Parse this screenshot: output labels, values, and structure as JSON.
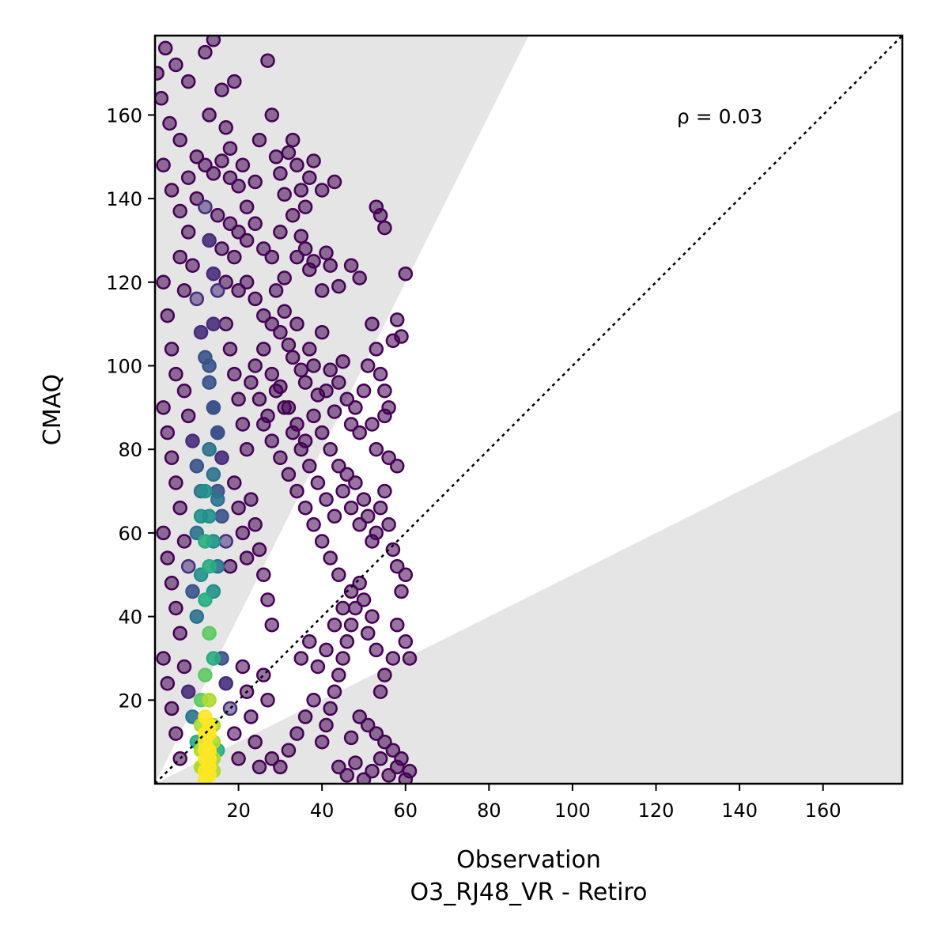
{
  "chart_data": {
    "type": "scatter",
    "xlabel": "Observation",
    "xlabel_sub": "O3_RJ48_VR - Retiro",
    "ylabel": "CMAQ",
    "annotation": "ρ = 0.03",
    "xlim": [
      0,
      179
    ],
    "ylim": [
      0,
      179
    ],
    "x_ticks": [
      20,
      40,
      60,
      80,
      100,
      120,
      140,
      160
    ],
    "y_ticks": [
      20,
      40,
      60,
      80,
      100,
      120,
      140,
      160
    ],
    "grid": false,
    "identity_line": true,
    "shaded_bands": [
      {
        "name": "upper",
        "slope": 2
      },
      {
        "name": "lower",
        "slope": 0.5
      }
    ],
    "colormap": [
      "#440154",
      "#472d7b",
      "#3b528b",
      "#2c728e",
      "#21918c",
      "#28ae80",
      "#5ec962",
      "#addc30",
      "#fde725"
    ],
    "points": [
      [
        0.5,
        170
      ],
      [
        1.5,
        164
      ],
      [
        2.5,
        176
      ],
      [
        3.5,
        158
      ],
      [
        5,
        172
      ],
      [
        6,
        154
      ],
      [
        8,
        168
      ],
      [
        10,
        150
      ],
      [
        12,
        175
      ],
      [
        13,
        160
      ],
      [
        14,
        178
      ],
      [
        16,
        166
      ],
      [
        17,
        157
      ],
      [
        18,
        152
      ],
      [
        19,
        168
      ],
      [
        2,
        148
      ],
      [
        4,
        142
      ],
      [
        6,
        137
      ],
      [
        8,
        145
      ],
      [
        10,
        140
      ],
      [
        12,
        148
      ],
      [
        14,
        146
      ],
      [
        16,
        149
      ],
      [
        18,
        145
      ],
      [
        20,
        143
      ],
      [
        21,
        148
      ],
      [
        22,
        138
      ],
      [
        24,
        144
      ],
      [
        25,
        154
      ],
      [
        27,
        173
      ],
      [
        28,
        160
      ],
      [
        29,
        150
      ],
      [
        30,
        146
      ],
      [
        31,
        141
      ],
      [
        32,
        151
      ],
      [
        33,
        154
      ],
      [
        34,
        148
      ],
      [
        35,
        142
      ],
      [
        36,
        138
      ],
      [
        37,
        145
      ],
      [
        38,
        149
      ],
      [
        40,
        142
      ],
      [
        43,
        144
      ],
      [
        20,
        132
      ],
      [
        22,
        130
      ],
      [
        24,
        134
      ],
      [
        26,
        128
      ],
      [
        28,
        126
      ],
      [
        30,
        132
      ],
      [
        31,
        121
      ],
      [
        33,
        136
      ],
      [
        34,
        126
      ],
      [
        35,
        131
      ],
      [
        36,
        128
      ],
      [
        37,
        123
      ],
      [
        38,
        125
      ],
      [
        40,
        118
      ],
      [
        41,
        127
      ],
      [
        42,
        124
      ],
      [
        44,
        119
      ],
      [
        47,
        124
      ],
      [
        49,
        121
      ],
      [
        52,
        110
      ],
      [
        53,
        104
      ],
      [
        54,
        98
      ],
      [
        55,
        94
      ],
      [
        56,
        90
      ],
      [
        57,
        106
      ],
      [
        58,
        111
      ],
      [
        59,
        107
      ],
      [
        60,
        122
      ],
      [
        53,
        138
      ],
      [
        54,
        136
      ],
      [
        55,
        133
      ],
      [
        22,
        120
      ],
      [
        24,
        116
      ],
      [
        26,
        112
      ],
      [
        28,
        110
      ],
      [
        29,
        118
      ],
      [
        30,
        108
      ],
      [
        31,
        113
      ],
      [
        32,
        105
      ],
      [
        33,
        102
      ],
      [
        34,
        110
      ],
      [
        35,
        99
      ],
      [
        36,
        96
      ],
      [
        37,
        104
      ],
      [
        38,
        100
      ],
      [
        39,
        93
      ],
      [
        40,
        108
      ],
      [
        41,
        94
      ],
      [
        42,
        99
      ],
      [
        43,
        89
      ],
      [
        44,
        96
      ],
      [
        45,
        101
      ],
      [
        46,
        92
      ],
      [
        47,
        86
      ],
      [
        48,
        90
      ],
      [
        49,
        84
      ],
      [
        50,
        94
      ],
      [
        51,
        100
      ],
      [
        52,
        86
      ],
      [
        53,
        80
      ],
      [
        55,
        88
      ],
      [
        56,
        78
      ],
      [
        58,
        76
      ],
      [
        30,
        95
      ],
      [
        32,
        90
      ],
      [
        34,
        86
      ],
      [
        36,
        82
      ],
      [
        38,
        88
      ],
      [
        40,
        84
      ],
      [
        42,
        80
      ],
      [
        44,
        76
      ],
      [
        45,
        70
      ],
      [
        46,
        74
      ],
      [
        47,
        66
      ],
      [
        48,
        72
      ],
      [
        49,
        62
      ],
      [
        50,
        68
      ],
      [
        51,
        64
      ],
      [
        52,
        58
      ],
      [
        53,
        60
      ],
      [
        54,
        66
      ],
      [
        55,
        70
      ],
      [
        56,
        62
      ],
      [
        57,
        56
      ],
      [
        58,
        52
      ],
      [
        59,
        46
      ],
      [
        60,
        50
      ],
      [
        61,
        30
      ],
      [
        60,
        34
      ],
      [
        58,
        38
      ],
      [
        57,
        30
      ],
      [
        55,
        26
      ],
      [
        54,
        22
      ],
      [
        53,
        32
      ],
      [
        52,
        40
      ],
      [
        51,
        36
      ],
      [
        50,
        44
      ],
      [
        49,
        48
      ],
      [
        48,
        42
      ],
      [
        47,
        38
      ],
      [
        46,
        34
      ],
      [
        45,
        30
      ],
      [
        44,
        26
      ],
      [
        43,
        22
      ],
      [
        42,
        18
      ],
      [
        41,
        14
      ],
      [
        40,
        10
      ],
      [
        38,
        20
      ],
      [
        36,
        16
      ],
      [
        34,
        12
      ],
      [
        32,
        8
      ],
      [
        30,
        4
      ],
      [
        28,
        6
      ],
      [
        35,
        30
      ],
      [
        37,
        34
      ],
      [
        39,
        28
      ],
      [
        41,
        32
      ],
      [
        43,
        38
      ],
      [
        45,
        42
      ],
      [
        47,
        46
      ],
      [
        44,
        50
      ],
      [
        42,
        54
      ],
      [
        40,
        58
      ],
      [
        38,
        62
      ],
      [
        36,
        66
      ],
      [
        34,
        70
      ],
      [
        32,
        74
      ],
      [
        30,
        78
      ],
      [
        28,
        82
      ],
      [
        26,
        86
      ],
      [
        44,
        4
      ],
      [
        46,
        2
      ],
      [
        48,
        5
      ],
      [
        50,
        1
      ],
      [
        52,
        3
      ],
      [
        54,
        6
      ],
      [
        56,
        2
      ],
      [
        58,
        4
      ],
      [
        60,
        1
      ],
      [
        61,
        3
      ],
      [
        59,
        6
      ],
      [
        57,
        8
      ],
      [
        55,
        10
      ],
      [
        53,
        12
      ],
      [
        51,
        14
      ],
      [
        49,
        16
      ],
      [
        47,
        11
      ],
      [
        24,
        100
      ],
      [
        23,
        96
      ],
      [
        25,
        92
      ],
      [
        27,
        88
      ],
      [
        26,
        104
      ],
      [
        28,
        98
      ],
      [
        29,
        94
      ],
      [
        31,
        90
      ],
      [
        33,
        84
      ],
      [
        35,
        80
      ],
      [
        37,
        76
      ],
      [
        39,
        72
      ],
      [
        41,
        68
      ],
      [
        43,
        64
      ],
      [
        2,
        120
      ],
      [
        3,
        112
      ],
      [
        4,
        104
      ],
      [
        5,
        98
      ],
      [
        6,
        126
      ],
      [
        7,
        118
      ],
      [
        8,
        132
      ],
      [
        9,
        124
      ],
      [
        10,
        116
      ],
      [
        11,
        108
      ],
      [
        12,
        138
      ],
      [
        13,
        130
      ],
      [
        14,
        122
      ],
      [
        15,
        136
      ],
      [
        16,
        128
      ],
      [
        17,
        120
      ],
      [
        18,
        134
      ],
      [
        19,
        126
      ],
      [
        20,
        118
      ],
      [
        2,
        90
      ],
      [
        3,
        84
      ],
      [
        4,
        78
      ],
      [
        5,
        72
      ],
      [
        6,
        66
      ],
      [
        7,
        94
      ],
      [
        8,
        88
      ],
      [
        9,
        82
      ],
      [
        10,
        76
      ],
      [
        11,
        70
      ],
      [
        12,
        102
      ],
      [
        13,
        96
      ],
      [
        14,
        90
      ],
      [
        15,
        84
      ],
      [
        16,
        78
      ],
      [
        17,
        110
      ],
      [
        18,
        104
      ],
      [
        19,
        98
      ],
      [
        20,
        92
      ],
      [
        21,
        86
      ],
      [
        22,
        80
      ],
      [
        2,
        60
      ],
      [
        3,
        54
      ],
      [
        4,
        48
      ],
      [
        5,
        42
      ],
      [
        6,
        36
      ],
      [
        7,
        58
      ],
      [
        8,
        52
      ],
      [
        9,
        46
      ],
      [
        10,
        40
      ],
      [
        11,
        64
      ],
      [
        12,
        58
      ],
      [
        13,
        52
      ],
      [
        14,
        46
      ],
      [
        15,
        70
      ],
      [
        16,
        64
      ],
      [
        17,
        58
      ],
      [
        18,
        52
      ],
      [
        19,
        72
      ],
      [
        20,
        66
      ],
      [
        21,
        60
      ],
      [
        22,
        54
      ],
      [
        23,
        68
      ],
      [
        24,
        62
      ],
      [
        25,
        56
      ],
      [
        26,
        50
      ],
      [
        27,
        44
      ],
      [
        28,
        38
      ],
      [
        2,
        30
      ],
      [
        3,
        24
      ],
      [
        4,
        18
      ],
      [
        5,
        12
      ],
      [
        6,
        6
      ],
      [
        7,
        28
      ],
      [
        8,
        22
      ],
      [
        9,
        16
      ],
      [
        10,
        10
      ],
      [
        11,
        4
      ],
      [
        12,
        26
      ],
      [
        13,
        20
      ],
      [
        14,
        14
      ],
      [
        15,
        8
      ],
      [
        16,
        30
      ],
      [
        17,
        24
      ],
      [
        18,
        18
      ],
      [
        19,
        12
      ],
      [
        20,
        6
      ],
      [
        21,
        28
      ],
      [
        22,
        22
      ],
      [
        23,
        16
      ],
      [
        24,
        10
      ],
      [
        25,
        4
      ],
      [
        26,
        26
      ],
      [
        27,
        20
      ],
      [
        10,
        60
      ],
      [
        11,
        50
      ],
      [
        12,
        44
      ],
      [
        13,
        36
      ],
      [
        14,
        30
      ],
      [
        12,
        70
      ],
      [
        13,
        64
      ],
      [
        14,
        58
      ],
      [
        15,
        52
      ],
      [
        13,
        80
      ],
      [
        14,
        74
      ],
      [
        15,
        68
      ],
      [
        14,
        90
      ],
      [
        15,
        84
      ],
      [
        13,
        100
      ],
      [
        14,
        110
      ],
      [
        15,
        118
      ],
      [
        11,
        20
      ],
      [
        12,
        16
      ],
      [
        13,
        12
      ],
      [
        12,
        10
      ],
      [
        13,
        8
      ],
      [
        12,
        6
      ],
      [
        13,
        4
      ],
      [
        12,
        3
      ],
      [
        13,
        2
      ],
      [
        11,
        8
      ],
      [
        14,
        6
      ],
      [
        12,
        12
      ],
      [
        13,
        14
      ],
      [
        11,
        14
      ],
      [
        14,
        10
      ],
      [
        12,
        1
      ],
      [
        13,
        6
      ],
      [
        14,
        3
      ],
      [
        11,
        4
      ],
      [
        12,
        8
      ]
    ]
  }
}
